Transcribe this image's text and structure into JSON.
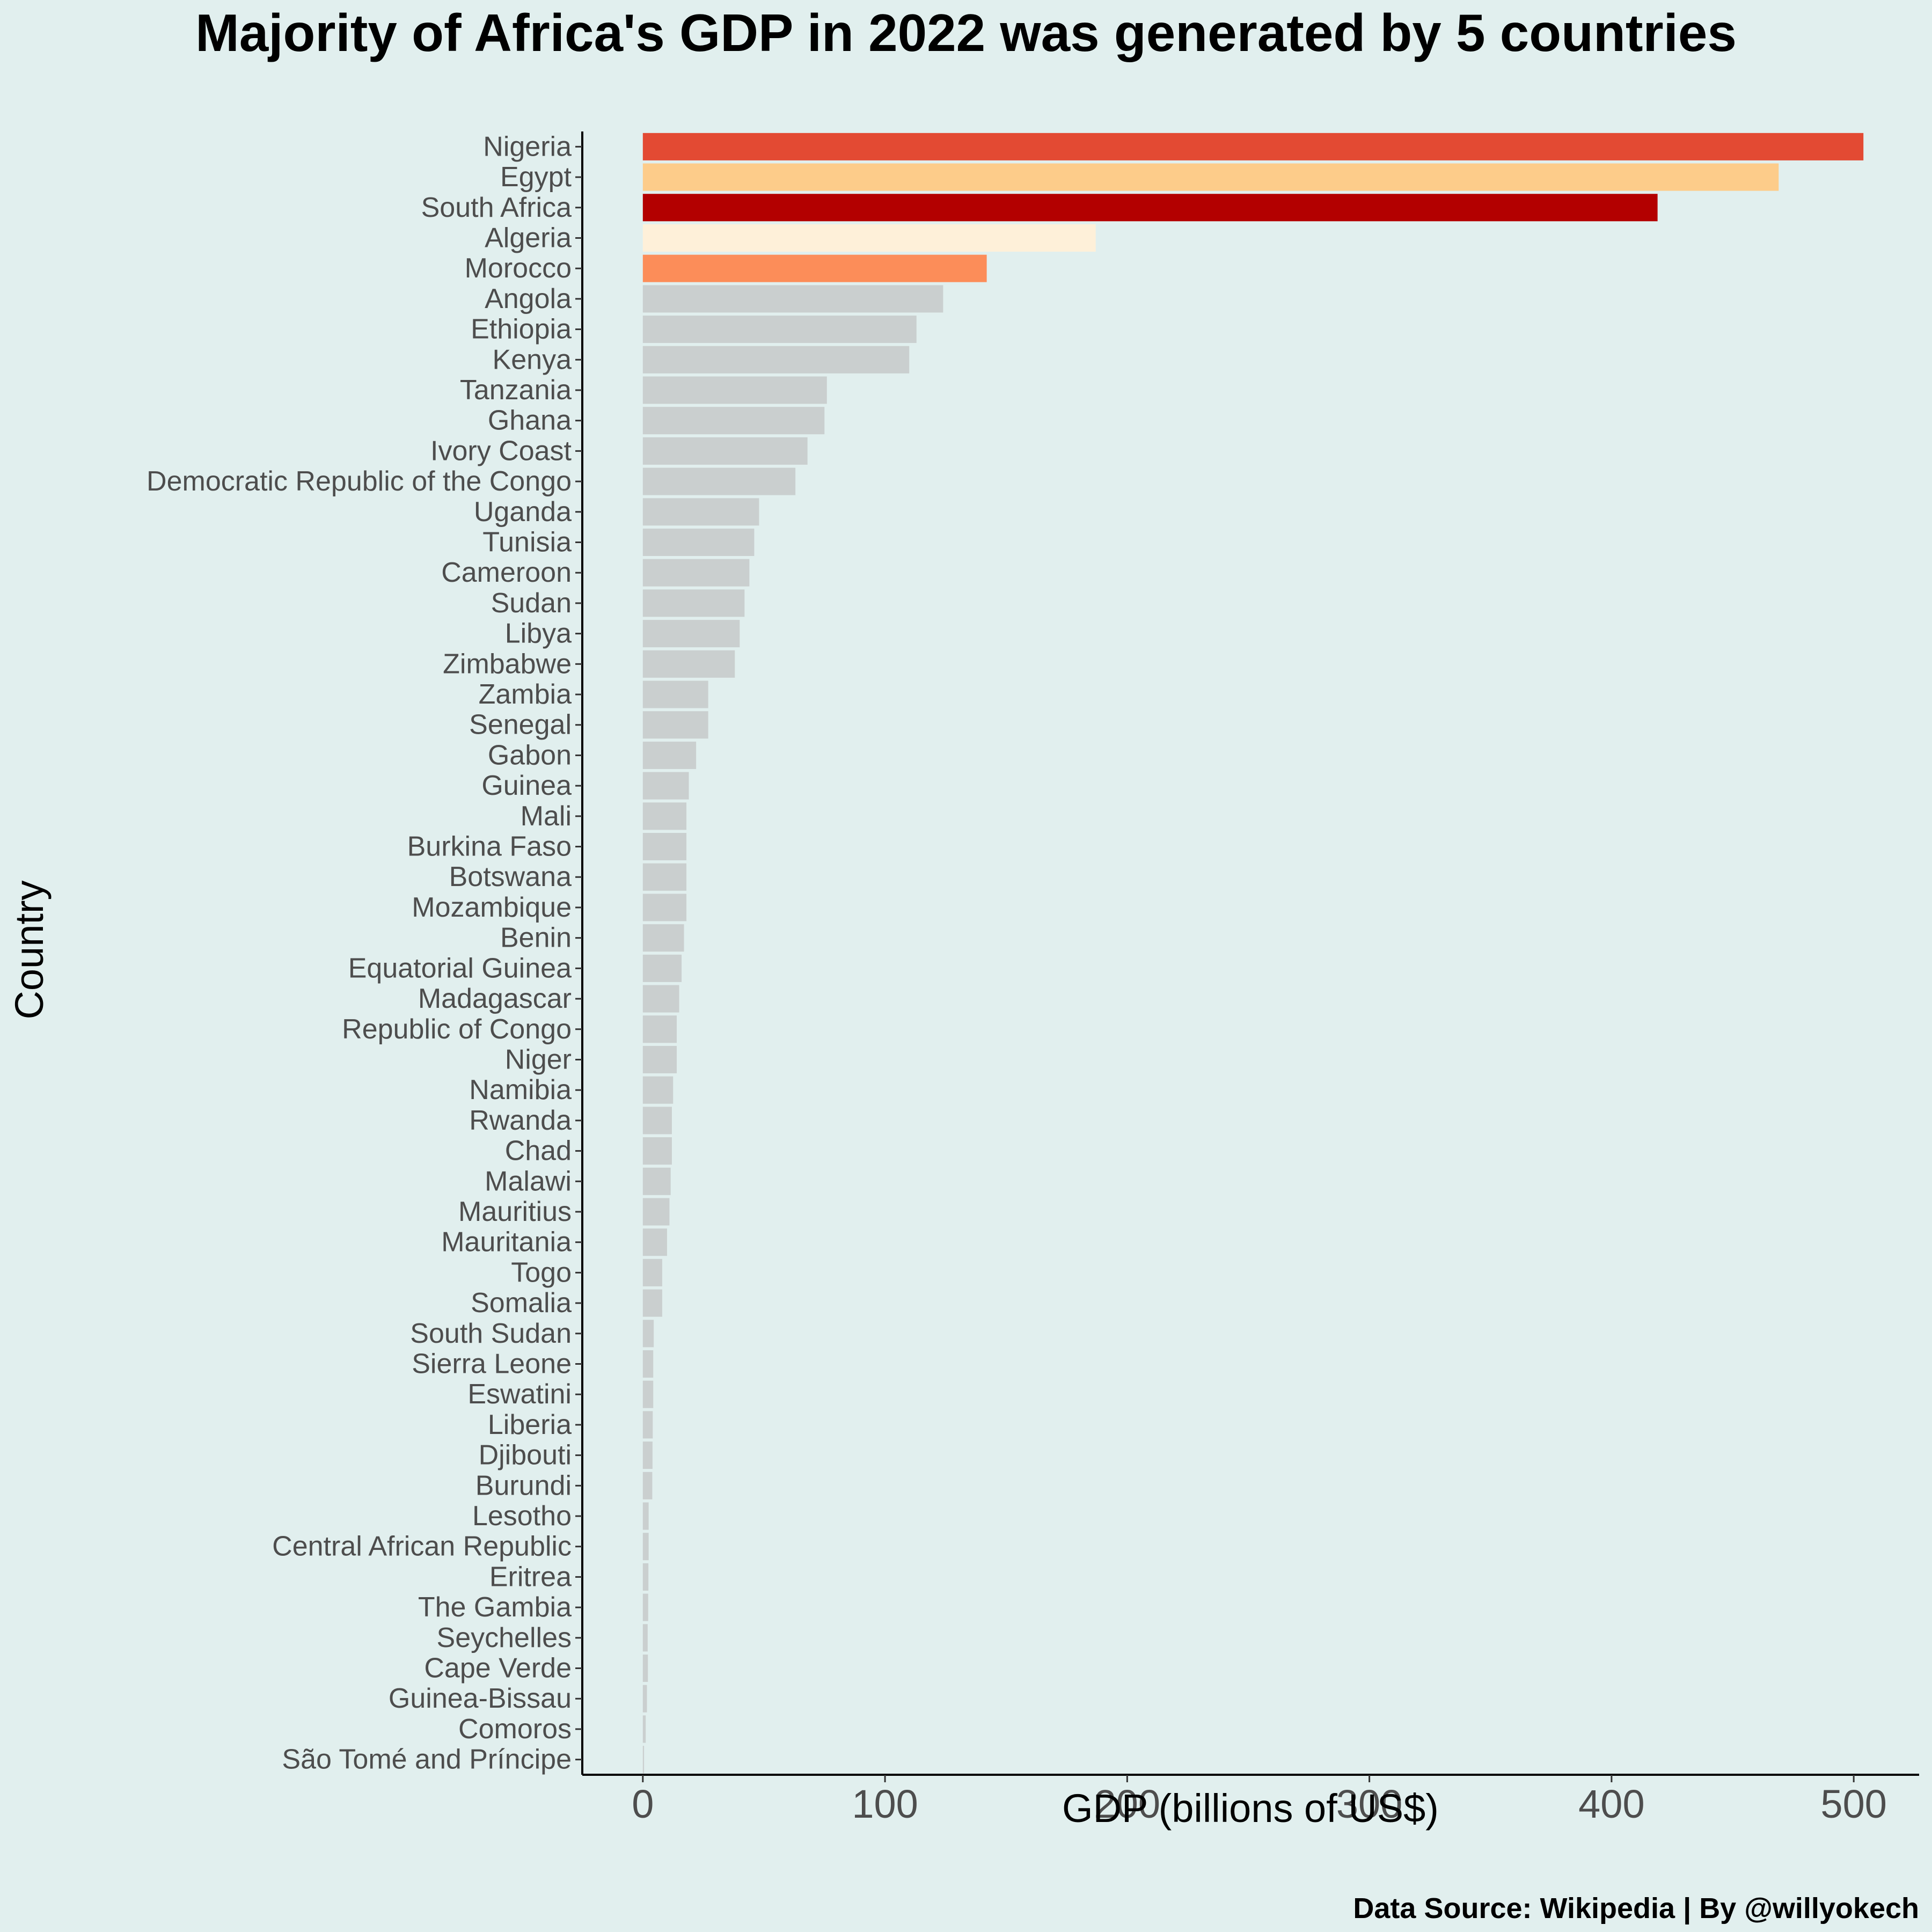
{
  "chart_data": {
    "type": "bar",
    "orientation": "horizontal",
    "title": "Majority of Africa's GDP in 2022 was generated by 5 countries",
    "xlabel": "GDP (billions of US$)",
    "ylabel": "Country",
    "caption": "Data Source: Wikipedia | By @willyokech",
    "xlim": [
      -25,
      527
    ],
    "x_ticks": [
      "0",
      "100",
      "200",
      "300",
      "400",
      "500"
    ],
    "grid": false,
    "legend": "none",
    "colors": {
      "background": "#e1efee",
      "default_bar": "#cacfcf",
      "Nigeria": "#e34a33",
      "Egypt": "#fdcc8a",
      "South Africa": "#b30000",
      "Algeria": "#fef0d9",
      "Morocco": "#fc8d59"
    },
    "categories": [
      "Nigeria",
      "Egypt",
      "South Africa",
      "Algeria",
      "Morocco",
      "Angola",
      "Ethiopia",
      "Kenya",
      "Tanzania",
      "Ghana",
      "Ivory Coast",
      "Democratic Republic of the Congo",
      "Uganda",
      "Tunisia",
      "Cameroon",
      "Sudan",
      "Libya",
      "Zimbabwe",
      "Zambia",
      "Senegal",
      "Gabon",
      "Guinea",
      "Mali",
      "Burkina Faso",
      "Botswana",
      "Mozambique",
      "Benin",
      "Equatorial Guinea",
      "Madagascar",
      "Republic of Congo",
      "Niger",
      "Namibia",
      "Rwanda",
      "Chad",
      "Malawi",
      "Mauritius",
      "Mauritania",
      "Togo",
      "Somalia",
      "South Sudan",
      "Sierra Leone",
      "Eswatini",
      "Liberia",
      "Djibouti",
      "Burundi",
      "Lesotho",
      "Central African Republic",
      "Eritrea",
      "The Gambia",
      "Seychelles",
      "Cape Verde",
      "Guinea-Bissau",
      "Comoros",
      "São Tomé and Príncipe"
    ],
    "values": [
      504,
      469,
      419,
      187,
      142,
      124,
      113,
      110,
      76,
      75,
      68,
      63,
      48,
      46,
      44,
      42,
      40,
      38,
      27,
      27,
      22,
      19,
      18,
      18,
      18,
      18,
      17,
      16,
      15,
      14,
      14,
      12.5,
      12,
      12,
      11.5,
      11,
      10,
      8,
      8,
      4.5,
      4.3,
      4.3,
      4.1,
      4,
      3.9,
      2.4,
      2.4,
      2.3,
      2.2,
      2,
      2.1,
      1.7,
      1.2,
      0.5
    ]
  }
}
